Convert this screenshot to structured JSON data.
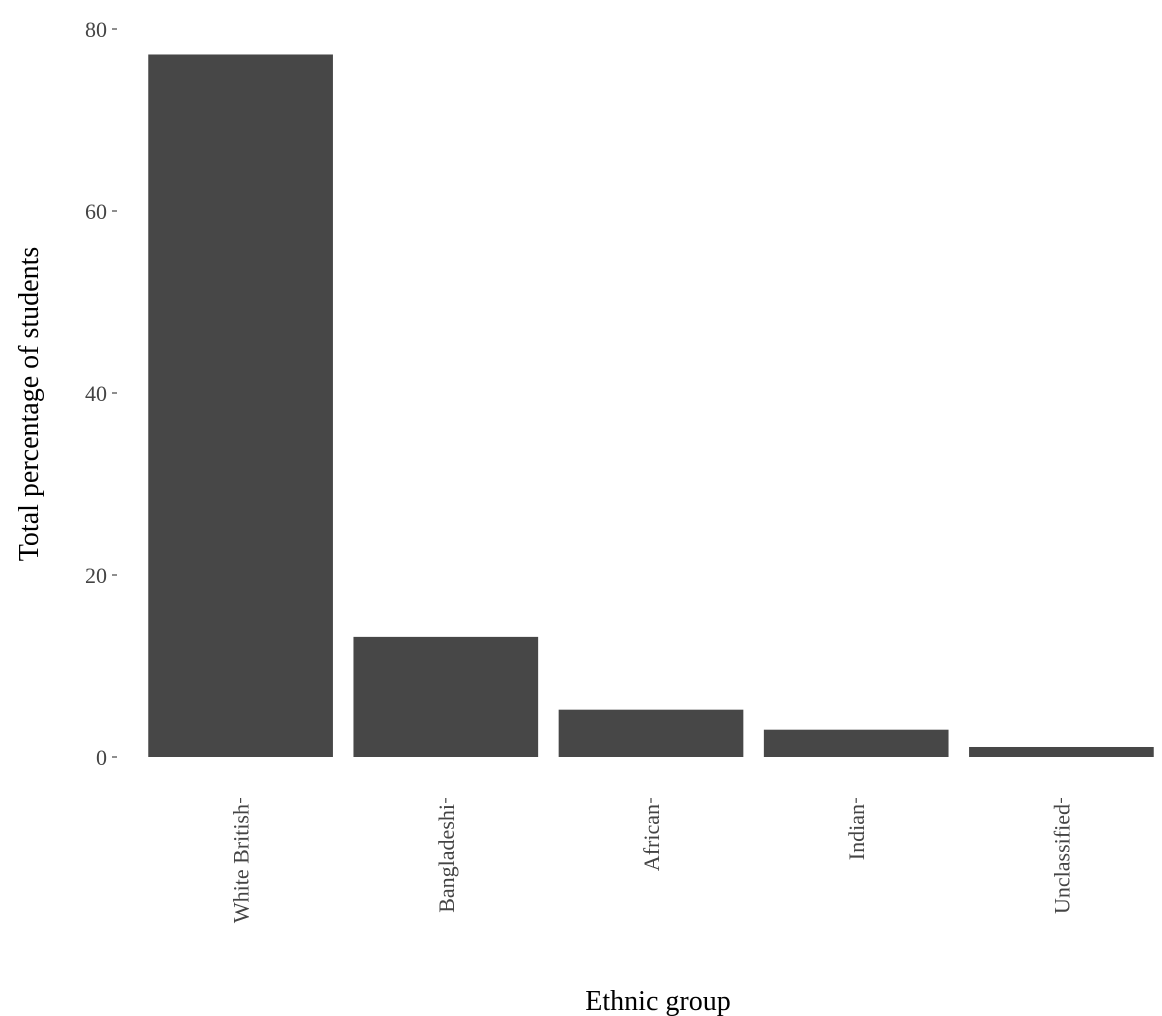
{
  "chart_data": {
    "type": "bar",
    "categories": [
      "White British",
      "Bangladeshi",
      "African",
      "Indian",
      "Unclassified"
    ],
    "values": [
      77.2,
      13.2,
      5.2,
      3.0,
      1.1
    ],
    "xlabel": "Ethnic group",
    "ylabel": "Total percentage of students",
    "ylim": [
      0,
      80
    ],
    "yticks": [
      0,
      20,
      40,
      60,
      80
    ],
    "bar_color": "#474747",
    "grid": false,
    "legend": "none"
  }
}
